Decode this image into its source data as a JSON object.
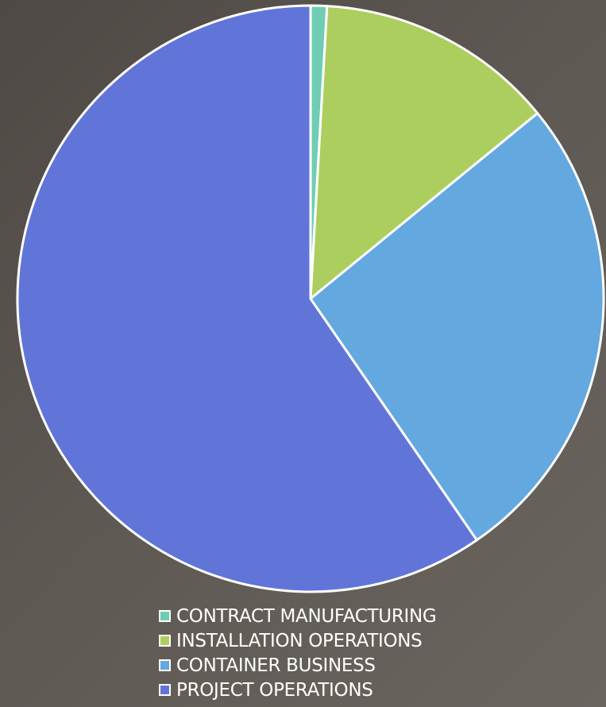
{
  "chart_data": {
    "type": "pie",
    "title": "",
    "categories": [
      "CONTRACT MANUFACTURING",
      "INSTALLATION OPERATIONS",
      "CONTAINER BUSINESS",
      "PROJECT OPERATIONS"
    ],
    "values": [
      0.9,
      13.2,
      26.3,
      59.6
    ],
    "colors": [
      "#6fcdb4",
      "#acce5e",
      "#64a8e0",
      "#6175d9"
    ],
    "legend": "bottom",
    "start_angle": "top",
    "direction": "clockwise"
  }
}
